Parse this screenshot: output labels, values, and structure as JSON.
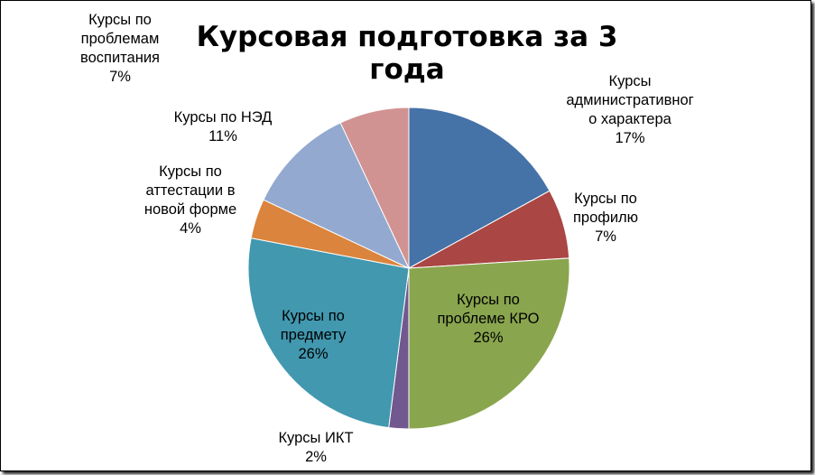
{
  "chart_data": {
    "type": "pie",
    "title": "Курсовая подготовка за 3 года",
    "start_angle_deg": 0,
    "direction": "clockwise",
    "slices": [
      {
        "name_lines": [
          "Курсы",
          "административног",
          "о характера"
        ],
        "percent_label": "17%",
        "value": 17,
        "color": "#4572A7"
      },
      {
        "name_lines": [
          "Курсы по",
          "профилю"
        ],
        "percent_label": "7%",
        "value": 7,
        "color": "#AA4643"
      },
      {
        "name_lines": [
          "Курсы по",
          "проблеме КРО"
        ],
        "percent_label": "26%",
        "value": 26,
        "color": "#89A54E"
      },
      {
        "name_lines": [
          "Курсы ИКТ"
        ],
        "percent_label": "2%",
        "value": 2,
        "color": "#71588F"
      },
      {
        "name_lines": [
          "Курсы по",
          "предмету"
        ],
        "percent_label": "26%",
        "value": 26,
        "color": "#4198AF"
      },
      {
        "name_lines": [
          "Курсы по",
          "аттестации в",
          "новой форме"
        ],
        "percent_label": "4%",
        "value": 4,
        "color": "#DB843D"
      },
      {
        "name_lines": [
          "Курсы по НЭД"
        ],
        "percent_label": "11%",
        "value": 11,
        "color": "#93A9CF"
      },
      {
        "name_lines": [
          "Курсы по",
          "проблемам",
          "воспитания"
        ],
        "percent_label": "7%",
        "value": 7,
        "color": "#D19392"
      }
    ],
    "legend": "none",
    "labels": "outside-and-inside"
  }
}
